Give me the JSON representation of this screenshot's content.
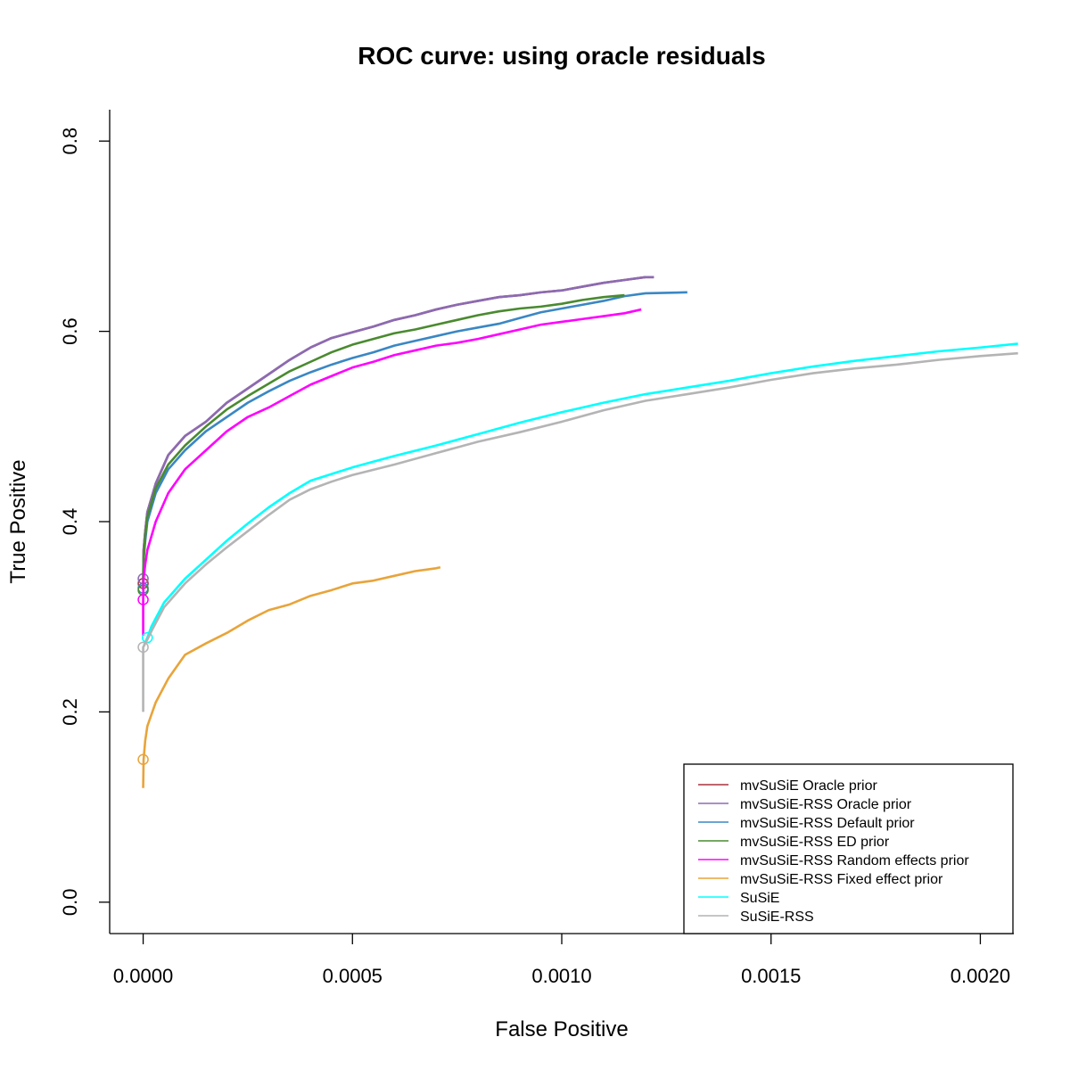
{
  "chart_data": {
    "type": "line",
    "title": "ROC curve: using oracle residuals",
    "xlabel": "False Positive",
    "ylabel": "True Positive",
    "xlim": [
      -8e-05,
      0.00208
    ],
    "ylim": [
      -0.033,
      0.833
    ],
    "x_ticks": [
      0,
      0.0005,
      0.001,
      0.0015,
      0.002
    ],
    "x_tick_labels": [
      "0.0000",
      "0.0005",
      "0.0010",
      "0.0015",
      "0.0020"
    ],
    "y_ticks": [
      0,
      0.2,
      0.4,
      0.6,
      0.8
    ],
    "y_tick_labels": [
      "0.0",
      "0.2",
      "0.4",
      "0.6",
      "0.8"
    ],
    "grid": false,
    "legend_position": "bottom-right",
    "series": [
      {
        "name": "mvSuSiE Oracle prior",
        "color": "#a8323e",
        "marker": [
          0,
          0.335
        ],
        "points": [
          [
            0,
            0.335
          ],
          [
            1e-06,
            0.37
          ],
          [
            5e-06,
            0.39
          ],
          [
            1e-05,
            0.41
          ],
          [
            3e-05,
            0.44
          ],
          [
            6e-05,
            0.47
          ],
          [
            0.0001,
            0.49
          ],
          [
            0.00015,
            0.505
          ],
          [
            0.0002,
            0.525
          ],
          [
            0.00025,
            0.54
          ],
          [
            0.0003,
            0.555
          ],
          [
            0.00035,
            0.57
          ],
          [
            0.0004,
            0.583
          ],
          [
            0.00045,
            0.593
          ],
          [
            0.0005,
            0.599
          ],
          [
            0.00055,
            0.605
          ],
          [
            0.0006,
            0.612
          ],
          [
            0.00065,
            0.617
          ],
          [
            0.0007,
            0.623
          ],
          [
            0.00075,
            0.628
          ],
          [
            0.0008,
            0.632
          ],
          [
            0.00085,
            0.636
          ],
          [
            0.0009,
            0.638
          ],
          [
            0.00095,
            0.641
          ],
          [
            0.001,
            0.643
          ],
          [
            0.00105,
            0.647
          ],
          [
            0.0011,
            0.651
          ],
          [
            0.00115,
            0.654
          ],
          [
            0.0012,
            0.657
          ],
          [
            0.00122,
            0.657
          ]
        ]
      },
      {
        "name": "mvSuSiE-RSS Oracle prior",
        "color": "#8b6bb3",
        "marker": [
          0,
          0.34
        ],
        "points": [
          [
            0,
            0.34
          ],
          [
            1e-06,
            0.37
          ],
          [
            5e-06,
            0.39
          ],
          [
            1e-05,
            0.41
          ],
          [
            3e-05,
            0.44
          ],
          [
            6e-05,
            0.47
          ],
          [
            0.0001,
            0.49
          ],
          [
            0.00015,
            0.505
          ],
          [
            0.0002,
            0.525
          ],
          [
            0.00025,
            0.54
          ],
          [
            0.0003,
            0.555
          ],
          [
            0.00035,
            0.57
          ],
          [
            0.0004,
            0.583
          ],
          [
            0.00045,
            0.593
          ],
          [
            0.0005,
            0.599
          ],
          [
            0.00055,
            0.605
          ],
          [
            0.0006,
            0.612
          ],
          [
            0.00065,
            0.617
          ],
          [
            0.0007,
            0.623
          ],
          [
            0.00075,
            0.628
          ],
          [
            0.0008,
            0.632
          ],
          [
            0.00085,
            0.636
          ],
          [
            0.0009,
            0.638
          ],
          [
            0.00095,
            0.641
          ],
          [
            0.001,
            0.643
          ],
          [
            0.00105,
            0.647
          ],
          [
            0.0011,
            0.651
          ],
          [
            0.00115,
            0.654
          ],
          [
            0.0012,
            0.657
          ],
          [
            0.00122,
            0.657
          ]
        ]
      },
      {
        "name": "mvSuSiE-RSS Default prior",
        "color": "#3a87c4",
        "marker": [
          0,
          0.33
        ],
        "points": [
          [
            0,
            0.33
          ],
          [
            1e-06,
            0.36
          ],
          [
            5e-06,
            0.38
          ],
          [
            1e-05,
            0.4
          ],
          [
            3e-05,
            0.43
          ],
          [
            6e-05,
            0.455
          ],
          [
            0.0001,
            0.475
          ],
          [
            0.00015,
            0.495
          ],
          [
            0.0002,
            0.51
          ],
          [
            0.00025,
            0.525
          ],
          [
            0.0003,
            0.537
          ],
          [
            0.00035,
            0.548
          ],
          [
            0.0004,
            0.557
          ],
          [
            0.00045,
            0.565
          ],
          [
            0.0005,
            0.572
          ],
          [
            0.00055,
            0.578
          ],
          [
            0.0006,
            0.585
          ],
          [
            0.00065,
            0.59
          ],
          [
            0.0007,
            0.595
          ],
          [
            0.00075,
            0.6
          ],
          [
            0.0008,
            0.604
          ],
          [
            0.00085,
            0.608
          ],
          [
            0.0009,
            0.614
          ],
          [
            0.00095,
            0.62
          ],
          [
            0.001,
            0.624
          ],
          [
            0.00105,
            0.628
          ],
          [
            0.0011,
            0.632
          ],
          [
            0.00115,
            0.637
          ],
          [
            0.0012,
            0.64
          ],
          [
            0.0013,
            0.641
          ]
        ]
      },
      {
        "name": "mvSuSiE-RSS ED prior",
        "color": "#4a8a30",
        "marker": [
          0,
          0.328
        ],
        "points": [
          [
            0,
            0.328
          ],
          [
            1e-06,
            0.36
          ],
          [
            5e-06,
            0.385
          ],
          [
            1e-05,
            0.405
          ],
          [
            3e-05,
            0.435
          ],
          [
            6e-05,
            0.46
          ],
          [
            0.0001,
            0.48
          ],
          [
            0.00015,
            0.5
          ],
          [
            0.0002,
            0.518
          ],
          [
            0.00025,
            0.532
          ],
          [
            0.0003,
            0.545
          ],
          [
            0.00035,
            0.558
          ],
          [
            0.0004,
            0.568
          ],
          [
            0.00045,
            0.578
          ],
          [
            0.0005,
            0.586
          ],
          [
            0.00055,
            0.592
          ],
          [
            0.0006,
            0.598
          ],
          [
            0.00065,
            0.602
          ],
          [
            0.0007,
            0.607
          ],
          [
            0.00075,
            0.612
          ],
          [
            0.0008,
            0.617
          ],
          [
            0.00085,
            0.621
          ],
          [
            0.0009,
            0.624
          ],
          [
            0.00095,
            0.626
          ],
          [
            0.001,
            0.629
          ],
          [
            0.00105,
            0.633
          ],
          [
            0.0011,
            0.636
          ],
          [
            0.00115,
            0.638
          ]
        ]
      },
      {
        "name": "mvSuSiE-RSS Random effects prior",
        "color": "#ff00ff",
        "marker": [
          0,
          0.318
        ],
        "points": [
          [
            0,
            0.28
          ],
          [
            0,
            0.318
          ],
          [
            1e-06,
            0.34
          ],
          [
            5e-06,
            0.355
          ],
          [
            1e-05,
            0.37
          ],
          [
            3e-05,
            0.4
          ],
          [
            6e-05,
            0.43
          ],
          [
            0.0001,
            0.455
          ],
          [
            0.00015,
            0.475
          ],
          [
            0.0002,
            0.495
          ],
          [
            0.00025,
            0.51
          ],
          [
            0.0003,
            0.52
          ],
          [
            0.00035,
            0.532
          ],
          [
            0.0004,
            0.544
          ],
          [
            0.00045,
            0.553
          ],
          [
            0.0005,
            0.562
          ],
          [
            0.00055,
            0.568
          ],
          [
            0.0006,
            0.575
          ],
          [
            0.00065,
            0.58
          ],
          [
            0.0007,
            0.585
          ],
          [
            0.00075,
            0.588
          ],
          [
            0.0008,
            0.592
          ],
          [
            0.00085,
            0.597
          ],
          [
            0.0009,
            0.602
          ],
          [
            0.00095,
            0.607
          ],
          [
            0.001,
            0.61
          ],
          [
            0.00105,
            0.613
          ],
          [
            0.0011,
            0.616
          ],
          [
            0.00115,
            0.619
          ],
          [
            0.00119,
            0.623
          ]
        ]
      },
      {
        "name": "mvSuSiE-RSS Fixed effect prior",
        "color": "#e8a43a",
        "marker": [
          0,
          0.15
        ],
        "points": [
          [
            0,
            0.12
          ],
          [
            1e-06,
            0.15
          ],
          [
            5e-06,
            0.17
          ],
          [
            1e-05,
            0.185
          ],
          [
            3e-05,
            0.21
          ],
          [
            6e-05,
            0.235
          ],
          [
            0.0001,
            0.26
          ],
          [
            0.00015,
            0.272
          ],
          [
            0.0002,
            0.283
          ],
          [
            0.00025,
            0.296
          ],
          [
            0.0003,
            0.307
          ],
          [
            0.00035,
            0.313
          ],
          [
            0.0004,
            0.322
          ],
          [
            0.00045,
            0.328
          ],
          [
            0.0005,
            0.335
          ],
          [
            0.00055,
            0.338
          ],
          [
            0.0006,
            0.343
          ],
          [
            0.00065,
            0.348
          ],
          [
            0.0007,
            0.351
          ],
          [
            0.00071,
            0.352
          ]
        ]
      },
      {
        "name": "SuSiE",
        "color": "#00ffff",
        "marker": [
          1e-05,
          0.278
        ],
        "points": [
          [
            2e-06,
            0.27
          ],
          [
            1e-05,
            0.278
          ],
          [
            2e-05,
            0.29
          ],
          [
            5e-05,
            0.315
          ],
          [
            0.0001,
            0.34
          ],
          [
            0.00015,
            0.36
          ],
          [
            0.0002,
            0.38
          ],
          [
            0.00025,
            0.398
          ],
          [
            0.0003,
            0.415
          ],
          [
            0.00035,
            0.43
          ],
          [
            0.0004,
            0.443
          ],
          [
            0.00045,
            0.45
          ],
          [
            0.0005,
            0.457
          ],
          [
            0.0006,
            0.469
          ],
          [
            0.0007,
            0.48
          ],
          [
            0.0008,
            0.492
          ],
          [
            0.0009,
            0.504
          ],
          [
            0.001,
            0.515
          ],
          [
            0.0011,
            0.525
          ],
          [
            0.0012,
            0.534
          ],
          [
            0.0013,
            0.541
          ],
          [
            0.0014,
            0.548
          ],
          [
            0.0015,
            0.556
          ],
          [
            0.0016,
            0.563
          ],
          [
            0.0017,
            0.569
          ],
          [
            0.0018,
            0.574
          ],
          [
            0.0019,
            0.579
          ],
          [
            0.002,
            0.583
          ],
          [
            0.00209,
            0.587
          ]
        ]
      },
      {
        "name": "SuSiE-RSS",
        "color": "#b4b4b4",
        "marker": [
          0,
          0.268
        ],
        "points": [
          [
            0,
            0.2
          ],
          [
            0,
            0.268
          ],
          [
            1e-05,
            0.276
          ],
          [
            2e-05,
            0.285
          ],
          [
            5e-05,
            0.31
          ],
          [
            0.0001,
            0.335
          ],
          [
            0.00015,
            0.355
          ],
          [
            0.0002,
            0.373
          ],
          [
            0.00025,
            0.39
          ],
          [
            0.0003,
            0.407
          ],
          [
            0.00035,
            0.423
          ],
          [
            0.0004,
            0.434
          ],
          [
            0.00045,
            0.442
          ],
          [
            0.0005,
            0.449
          ],
          [
            0.0006,
            0.46
          ],
          [
            0.0007,
            0.472
          ],
          [
            0.0008,
            0.484
          ],
          [
            0.0009,
            0.494
          ],
          [
            0.001,
            0.505
          ],
          [
            0.0011,
            0.517
          ],
          [
            0.0012,
            0.527
          ],
          [
            0.0013,
            0.534
          ],
          [
            0.0014,
            0.541
          ],
          [
            0.0015,
            0.549
          ],
          [
            0.0016,
            0.556
          ],
          [
            0.0017,
            0.561
          ],
          [
            0.0018,
            0.565
          ],
          [
            0.0019,
            0.57
          ],
          [
            0.002,
            0.574
          ],
          [
            0.00209,
            0.577
          ]
        ]
      }
    ]
  }
}
